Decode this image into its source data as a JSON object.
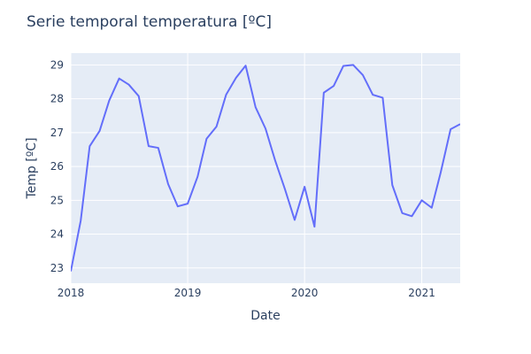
{
  "chart_data": {
    "type": "line",
    "title": "Serie temporal temperatura [ºC]",
    "xlabel": "Date",
    "ylabel": "Temp [ºC]",
    "x": [
      "2018-01",
      "2018-02",
      "2018-03",
      "2018-04",
      "2018-05",
      "2018-06",
      "2018-07",
      "2018-08",
      "2018-09",
      "2018-10",
      "2018-11",
      "2018-12",
      "2019-01",
      "2019-02",
      "2019-03",
      "2019-04",
      "2019-05",
      "2019-06",
      "2019-07",
      "2019-08",
      "2019-09",
      "2019-10",
      "2019-11",
      "2019-12",
      "2020-01",
      "2020-02",
      "2020-03",
      "2020-04",
      "2020-05",
      "2020-06",
      "2020-07",
      "2020-08",
      "2020-09",
      "2020-10",
      "2020-11",
      "2020-12",
      "2021-01",
      "2021-02",
      "2021-03",
      "2021-04",
      "2021-05"
    ],
    "series": [
      {
        "values": [
          22.9,
          24.4,
          26.6,
          27.05,
          27.95,
          28.6,
          28.42,
          28.08,
          26.6,
          26.55,
          25.48,
          24.82,
          24.9,
          25.7,
          26.82,
          27.18,
          28.12,
          28.62,
          28.98,
          27.75,
          27.12,
          26.18,
          25.32,
          24.42,
          25.4,
          24.22,
          28.18,
          28.38,
          28.97,
          29.0,
          28.7,
          28.12,
          28.03,
          25.45,
          24.62,
          24.53,
          25.0,
          24.78,
          25.82,
          27.1,
          27.25
        ]
      }
    ],
    "x_ticks": [
      "2018",
      "2019",
      "2020",
      "2021"
    ],
    "y_ticks": [
      "23",
      "24",
      "25",
      "26",
      "27",
      "28",
      "29"
    ],
    "xlim": [
      "2018-01-01",
      "2021-05-01"
    ],
    "ylim": [
      22.55,
      29.35
    ],
    "grid": true,
    "colors": {
      "line": "#636efa",
      "plot_bg": "#e5ecf6",
      "grid": "#ffffff",
      "text": "#2a3f5f"
    }
  }
}
